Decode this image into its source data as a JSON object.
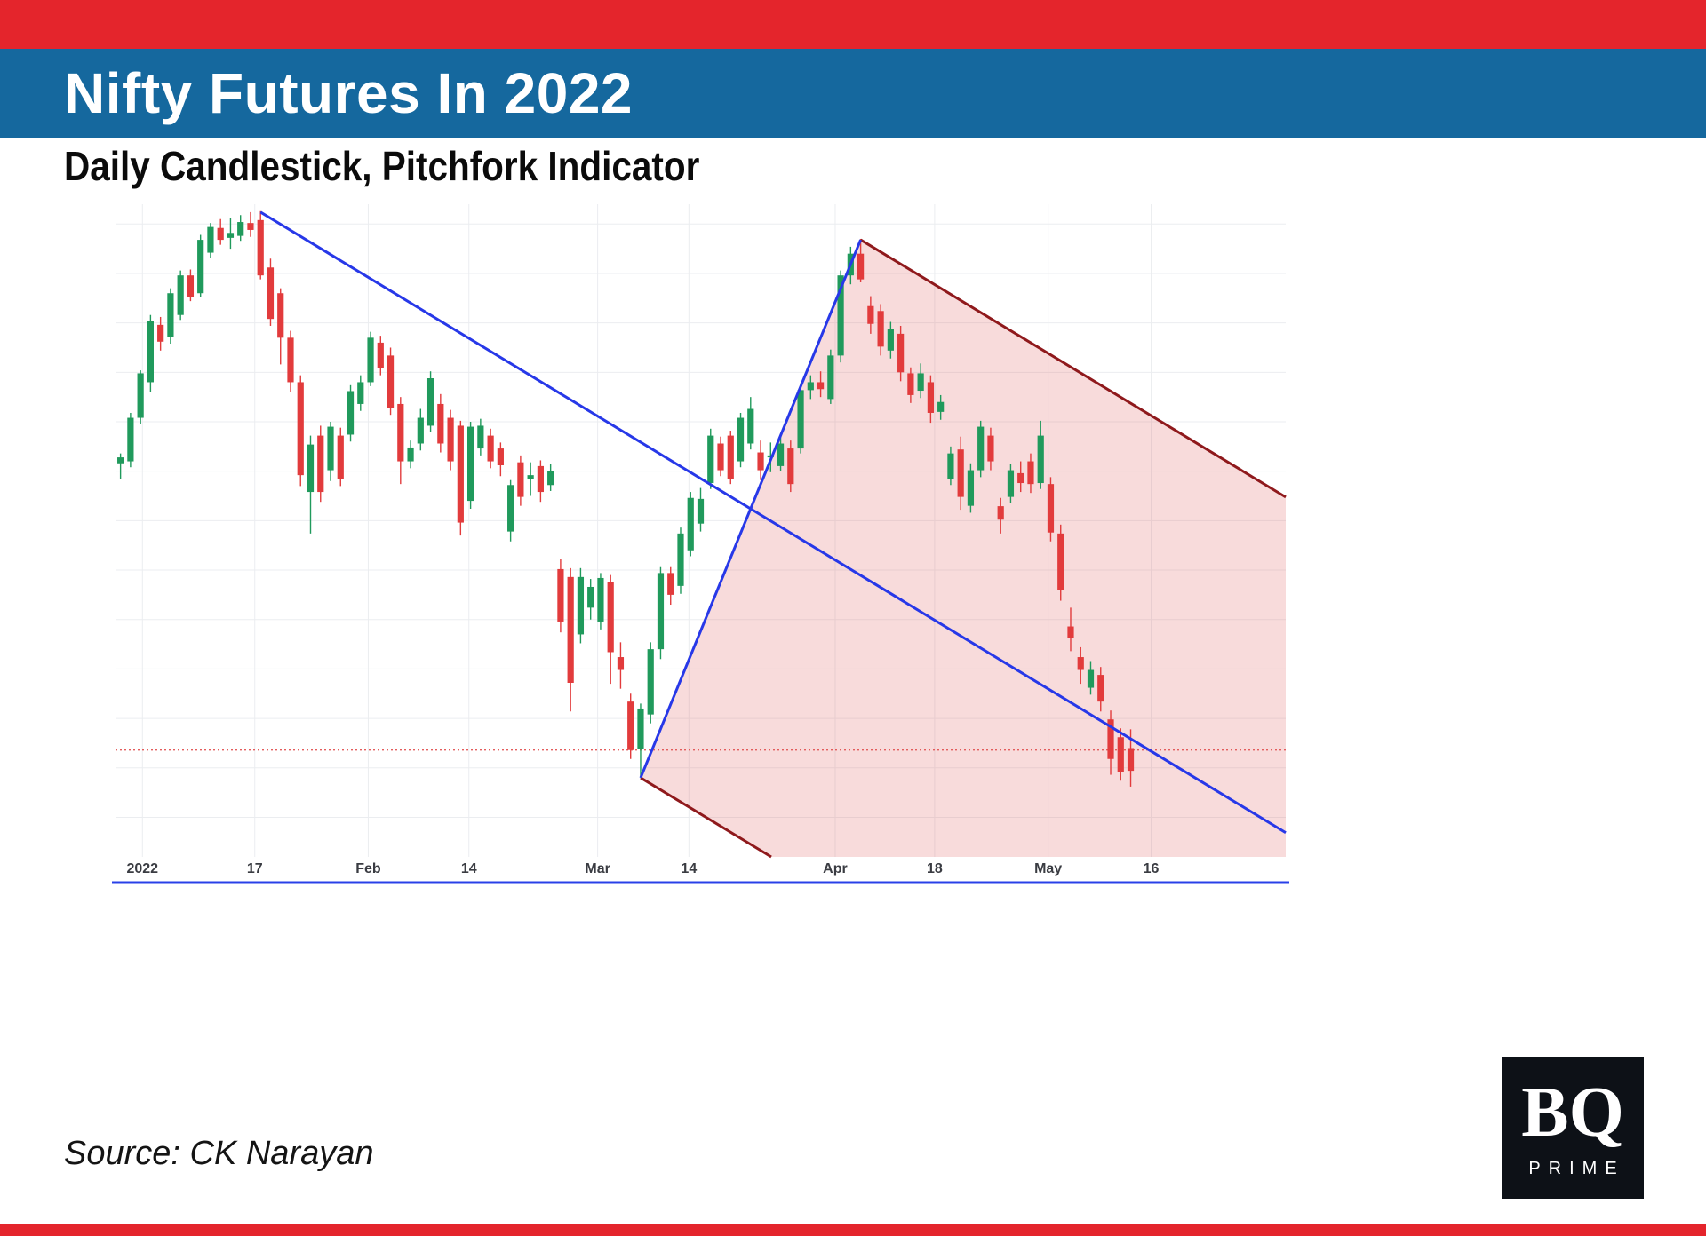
{
  "header": {
    "title": "Nifty Futures In 2022",
    "subtitle": "Daily Candlestick, Pitchfork Indicator"
  },
  "footer": {
    "source": "Source: CK Narayan",
    "logo_main": "BQ",
    "logo_sub": "PRIME"
  },
  "theme": {
    "accent_red": "#e4252c",
    "band_blue": "#15689e",
    "logo_bg": "#0d1117"
  },
  "chart_data": {
    "type": "candlestick",
    "title": "Nifty Futures In 2022",
    "subtitle": "Daily Candlestick, Pitchfork Indicator",
    "xlabel": "",
    "ylabel": "",
    "y_axis_labels_visible": false,
    "ylim": [
      15300,
      18600
    ],
    "total_slots": 117,
    "grid": {
      "h_min": 15500,
      "h_max": 18500,
      "h_step": 250,
      "color": "#ebedf0"
    },
    "x_axis_labels": [
      {
        "text": "2022",
        "x": 0.023
      },
      {
        "text": "17",
        "x": 0.119
      },
      {
        "text": "Feb",
        "x": 0.216
      },
      {
        "text": "14",
        "x": 0.302
      },
      {
        "text": "Mar",
        "x": 0.412
      },
      {
        "text": "14",
        "x": 0.49
      },
      {
        "text": "Apr",
        "x": 0.615
      },
      {
        "text": "18",
        "x": 0.7
      },
      {
        "text": "May",
        "x": 0.797
      },
      {
        "text": "16",
        "x": 0.885
      }
    ],
    "colors": {
      "up": "#209a5c",
      "down": "#e23b3c"
    },
    "level_line": {
      "price": 15840,
      "color": "#e35d5d",
      "style": "dotted"
    },
    "pitchfork": {
      "handle": {
        "slot": 14,
        "price": 18560
      },
      "low": {
        "slot": 52,
        "price": 15700
      },
      "high": {
        "slot": 74,
        "price": 18420
      },
      "median_color": "#2738e8",
      "tine_color": "#8f191c",
      "fill_color": "#e05a5a",
      "fill_opacity": 0.22
    },
    "axis_rule_color": "#2940e8",
    "candles": [
      [
        17290,
        17340,
        17210,
        17320
      ],
      [
        17300,
        17545,
        17270,
        17520
      ],
      [
        17520,
        17760,
        17490,
        17745
      ],
      [
        17700,
        18040,
        17650,
        18010
      ],
      [
        17990,
        18030,
        17860,
        17905
      ],
      [
        17930,
        18175,
        17895,
        18150
      ],
      [
        18040,
        18265,
        18015,
        18240
      ],
      [
        18240,
        18270,
        18110,
        18130
      ],
      [
        18150,
        18445,
        18130,
        18420
      ],
      [
        18355,
        18505,
        18330,
        18485
      ],
      [
        18480,
        18525,
        18395,
        18420
      ],
      [
        18430,
        18530,
        18375,
        18455
      ],
      [
        18440,
        18545,
        18415,
        18510
      ],
      [
        18505,
        18560,
        18435,
        18470
      ],
      [
        18520,
        18565,
        18220,
        18240
      ],
      [
        18280,
        18325,
        17985,
        18020
      ],
      [
        18150,
        18175,
        17790,
        17925
      ],
      [
        17925,
        17960,
        17650,
        17700
      ],
      [
        17700,
        17735,
        17175,
        17230
      ],
      [
        17145,
        17430,
        16935,
        17385
      ],
      [
        17430,
        17480,
        17095,
        17145
      ],
      [
        17255,
        17500,
        17200,
        17475
      ],
      [
        17430,
        17470,
        17175,
        17210
      ],
      [
        17435,
        17685,
        17400,
        17655
      ],
      [
        17590,
        17735,
        17555,
        17700
      ],
      [
        17700,
        17955,
        17680,
        17925
      ],
      [
        17900,
        17935,
        17735,
        17770
      ],
      [
        17835,
        17875,
        17535,
        17570
      ],
      [
        17590,
        17625,
        17185,
        17300
      ],
      [
        17300,
        17405,
        17265,
        17370
      ],
      [
        17390,
        17565,
        17355,
        17520
      ],
      [
        17480,
        17755,
        17450,
        17720
      ],
      [
        17590,
        17640,
        17345,
        17390
      ],
      [
        17520,
        17560,
        17255,
        17300
      ],
      [
        17480,
        17505,
        16925,
        16990
      ],
      [
        17100,
        17500,
        17060,
        17475
      ],
      [
        17365,
        17515,
        17330,
        17480
      ],
      [
        17430,
        17465,
        17265,
        17300
      ],
      [
        17365,
        17395,
        17225,
        17280
      ],
      [
        16945,
        17205,
        16895,
        17180
      ],
      [
        17295,
        17330,
        17075,
        17120
      ],
      [
        17210,
        17295,
        17125,
        17230
      ],
      [
        17276,
        17305,
        17095,
        17145
      ],
      [
        17180,
        17285,
        17150,
        17250
      ],
      [
        16755,
        16805,
        16435,
        16490
      ],
      [
        16715,
        16760,
        16035,
        16180
      ],
      [
        16425,
        16760,
        16380,
        16715
      ],
      [
        16560,
        16705,
        16500,
        16665
      ],
      [
        16490,
        16735,
        16450,
        16710
      ],
      [
        16690,
        16725,
        16175,
        16335
      ],
      [
        16310,
        16385,
        16150,
        16245
      ],
      [
        16085,
        16125,
        15795,
        15840
      ],
      [
        15845,
        16075,
        15700,
        16050
      ],
      [
        16020,
        16385,
        15975,
        16350
      ],
      [
        16350,
        16765,
        16300,
        16735
      ],
      [
        16735,
        16765,
        16575,
        16625
      ],
      [
        16670,
        16965,
        16630,
        16935
      ],
      [
        16850,
        17145,
        16820,
        17115
      ],
      [
        16985,
        17165,
        16945,
        17110
      ],
      [
        17190,
        17465,
        17160,
        17430
      ],
      [
        17390,
        17425,
        17225,
        17255
      ],
      [
        17430,
        17455,
        17185,
        17210
      ],
      [
        17300,
        17545,
        17270,
        17520
      ],
      [
        17390,
        17625,
        17360,
        17565
      ],
      [
        17345,
        17405,
        17205,
        17255
      ],
      [
        17320,
        17395,
        17245,
        17330
      ],
      [
        17276,
        17425,
        17250,
        17390
      ],
      [
        17365,
        17405,
        17145,
        17185
      ],
      [
        17365,
        17695,
        17340,
        17660
      ],
      [
        17660,
        17735,
        17615,
        17700
      ],
      [
        17700,
        17755,
        17625,
        17665
      ],
      [
        17615,
        17865,
        17590,
        17835
      ],
      [
        17835,
        18265,
        17800,
        18240
      ],
      [
        18240,
        18385,
        18195,
        18350
      ],
      [
        18350,
        18425,
        18205,
        18220
      ],
      [
        18085,
        18135,
        17945,
        17995
      ],
      [
        18060,
        18095,
        17835,
        17880
      ],
      [
        17860,
        18005,
        17820,
        17970
      ],
      [
        17945,
        17985,
        17705,
        17750
      ],
      [
        17745,
        17775,
        17595,
        17635
      ],
      [
        17657,
        17795,
        17620,
        17745
      ],
      [
        17700,
        17735,
        17495,
        17545
      ],
      [
        17550,
        17635,
        17510,
        17600
      ],
      [
        17210,
        17375,
        17180,
        17340
      ],
      [
        17360,
        17425,
        17055,
        17120
      ],
      [
        17075,
        17290,
        17040,
        17255
      ],
      [
        17255,
        17505,
        17220,
        17475
      ],
      [
        17430,
        17470,
        17255,
        17300
      ],
      [
        17073,
        17115,
        16935,
        17005
      ],
      [
        17120,
        17285,
        17090,
        17255
      ],
      [
        17240,
        17300,
        17145,
        17190
      ],
      [
        17300,
        17340,
        17140,
        17185
      ],
      [
        17190,
        17505,
        17160,
        17430
      ],
      [
        17185,
        17220,
        16895,
        16940
      ],
      [
        16935,
        16980,
        16595,
        16650
      ],
      [
        16465,
        16560,
        16340,
        16405
      ],
      [
        16310,
        16360,
        16175,
        16245
      ],
      [
        16155,
        16290,
        16120,
        16245
      ],
      [
        16220,
        16260,
        16035,
        16085
      ],
      [
        15995,
        16040,
        15715,
        15795
      ],
      [
        15905,
        15950,
        15685,
        15730
      ],
      [
        15850,
        15945,
        15655,
        15735
      ]
    ]
  }
}
